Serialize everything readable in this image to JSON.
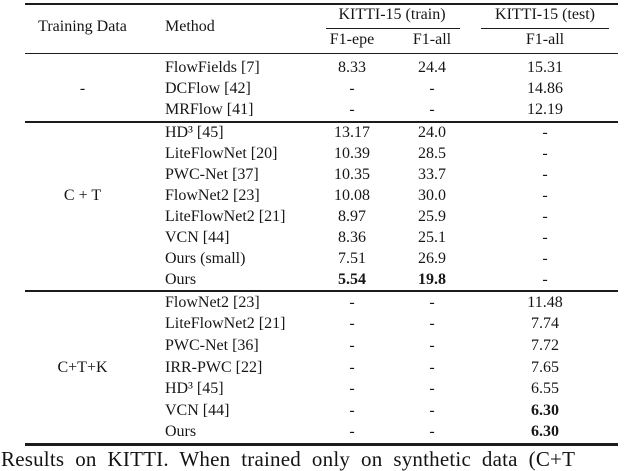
{
  "table": {
    "header": {
      "training_data": "Training Data",
      "method": "Method",
      "group_train": "KITTI-15 (train)",
      "group_test": "KITTI-15 (test)",
      "f1_epe": "F1-epe",
      "f1_all_train": "F1-all",
      "f1_all_test": "F1-all"
    },
    "groups": [
      {
        "training_data": "-",
        "rows": [
          {
            "method": "FlowFields [7]",
            "f1_epe": "8.33",
            "f1_all_train": "24.4",
            "f1_all_test": "15.31"
          },
          {
            "method": "DCFlow [42]",
            "f1_epe": "-",
            "f1_all_train": "-",
            "f1_all_test": "14.86"
          },
          {
            "method": "MRFlow [41]",
            "f1_epe": "-",
            "f1_all_train": "-",
            "f1_all_test": "12.19"
          }
        ]
      },
      {
        "training_data": "C + T",
        "rows": [
          {
            "method": "HD³ [45]",
            "f1_epe": "13.17",
            "f1_all_train": "24.0",
            "f1_all_test": "-"
          },
          {
            "method": "LiteFlowNet [20]",
            "f1_epe": "10.39",
            "f1_all_train": "28.5",
            "f1_all_test": "-"
          },
          {
            "method": "PWC-Net [37]",
            "f1_epe": "10.35",
            "f1_all_train": "33.7",
            "f1_all_test": "-"
          },
          {
            "method": "FlowNet2 [23]",
            "f1_epe": "10.08",
            "f1_all_train": "30.0",
            "f1_all_test": "-"
          },
          {
            "method": "LiteFlowNet2 [21]",
            "f1_epe": "8.97",
            "f1_all_train": "25.9",
            "f1_all_test": "-"
          },
          {
            "method": "VCN [44]",
            "f1_epe": "8.36",
            "f1_all_train": "25.1",
            "f1_all_test": "-"
          },
          {
            "method": "Ours (small)",
            "f1_epe": "7.51",
            "f1_all_train": "26.9",
            "f1_all_test": "-"
          },
          {
            "method": "Ours",
            "f1_epe": "5.54",
            "f1_all_train": "19.8",
            "f1_all_test": "-"
          }
        ]
      },
      {
        "training_data": "C+T+K",
        "rows": [
          {
            "method": "FlowNet2 [23]",
            "f1_epe": "-",
            "f1_all_train": "-",
            "f1_all_test": "11.48"
          },
          {
            "method": "LiteFlowNet2 [21]",
            "f1_epe": "-",
            "f1_all_train": "-",
            "f1_all_test": "7.74"
          },
          {
            "method": "PWC-Net [36]",
            "f1_epe": "-",
            "f1_all_train": "-",
            "f1_all_test": "7.72"
          },
          {
            "method": "IRR-PWC [22]",
            "f1_epe": "-",
            "f1_all_train": "-",
            "f1_all_test": "7.65"
          },
          {
            "method": "HD³ [45]",
            "f1_epe": "-",
            "f1_all_train": "-",
            "f1_all_test": "6.55"
          },
          {
            "method": "VCN [44]",
            "f1_epe": "-",
            "f1_all_train": "-",
            "f1_all_test": "6.30"
          },
          {
            "method": "Ours",
            "f1_epe": "-",
            "f1_all_train": "-",
            "f1_all_test": "6.30"
          }
        ]
      }
    ]
  },
  "caption": "Results on KITTI. When trained only on synthetic data (C+T"
}
